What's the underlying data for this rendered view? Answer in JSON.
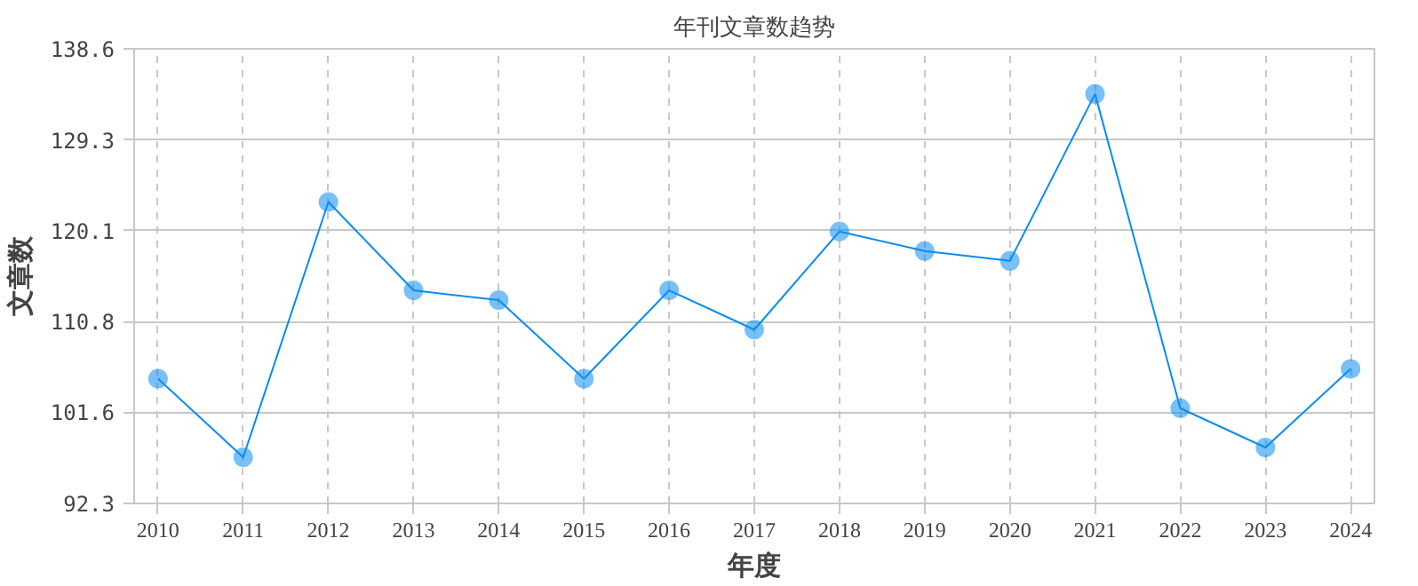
{
  "chart_data": {
    "type": "line",
    "title": "年刊文章数趋势",
    "xlabel": "年度",
    "ylabel": "文章数",
    "categories": [
      "2010",
      "2011",
      "2012",
      "2013",
      "2014",
      "2015",
      "2016",
      "2017",
      "2018",
      "2019",
      "2020",
      "2021",
      "2022",
      "2023",
      "2024"
    ],
    "series": [
      {
        "color": "#0a8cf0",
        "values": [
          105,
          97,
          123,
          114,
          113,
          105,
          114,
          110,
          120,
          118,
          117,
          134,
          102,
          98,
          106
        ]
      }
    ],
    "ylim": [
      92.3,
      138.6
    ],
    "yticks": [
      92.3,
      101.6,
      110.8,
      120.1,
      129.3,
      138.6
    ],
    "grid": true,
    "marker": "circle",
    "line_style": "solid"
  }
}
